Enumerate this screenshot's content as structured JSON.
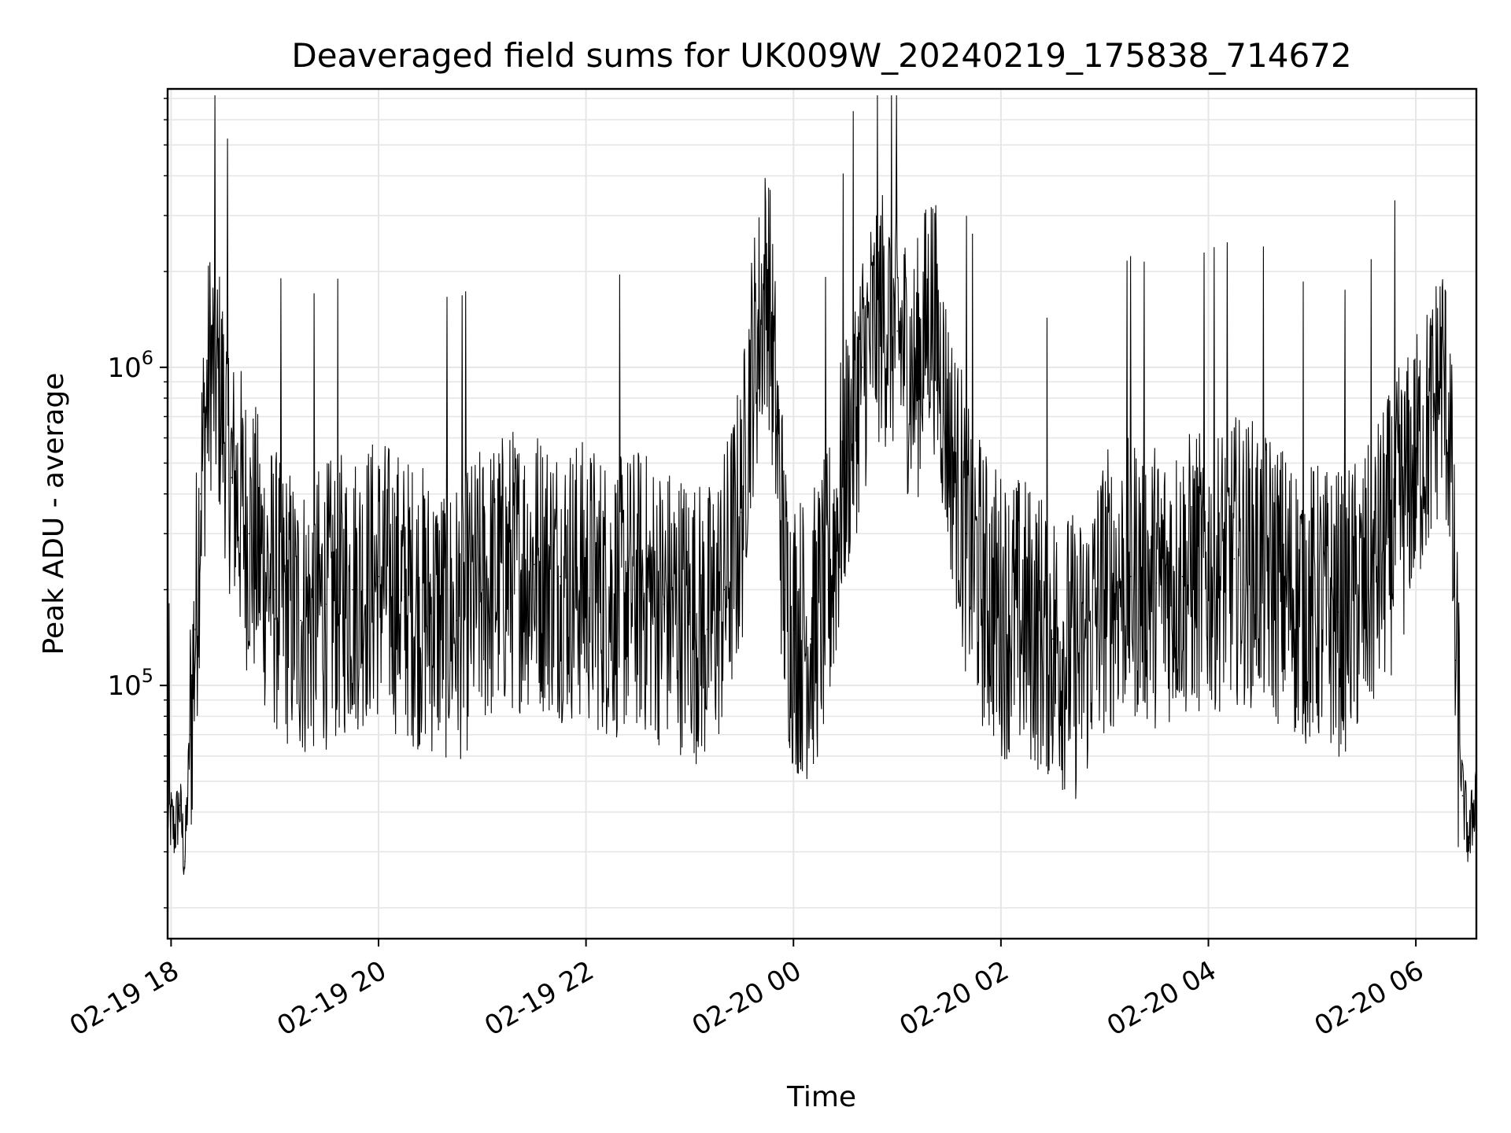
{
  "chart_data": {
    "type": "line",
    "title": "Deaveraged field sums for UK009W_20240219_175838_714672",
    "xlabel": "Time",
    "ylabel": "Peak ADU - average",
    "y_scale": "log",
    "x_range": [
      "2024-02-19 17:58",
      "2024-02-20 06:35"
    ],
    "ylim": [
      16000,
      7500000
    ],
    "x_ticks": [
      {
        "label": "02-19 18",
        "time": "2024-02-19 18:00"
      },
      {
        "label": "02-19 20",
        "time": "2024-02-19 20:00"
      },
      {
        "label": "02-19 22",
        "time": "2024-02-19 22:00"
      },
      {
        "label": "02-20 00",
        "time": "2024-02-20 00:00"
      },
      {
        "label": "02-20 02",
        "time": "2024-02-20 02:00"
      },
      {
        "label": "02-20 04",
        "time": "2024-02-20 04:00"
      },
      {
        "label": "02-20 06",
        "time": "2024-02-20 06:00"
      }
    ],
    "y_ticks": [
      {
        "base": "10",
        "exp": "5",
        "value": 100000
      },
      {
        "base": "10",
        "exp": "6",
        "value": 1000000
      }
    ],
    "grid": true,
    "line_color": "#000000",
    "grid_color": "#e6e6e6",
    "series": [
      {
        "values": [
          [
            "2024-02-19 17:58",
            40000
          ],
          [
            "2024-02-19 18:02",
            35000
          ],
          [
            "2024-02-19 18:05",
            42000
          ],
          [
            "2024-02-19 18:08",
            28000
          ],
          [
            "2024-02-19 18:11",
            70000
          ],
          [
            "2024-02-19 18:14",
            150000
          ],
          [
            "2024-02-19 18:17",
            400000
          ],
          [
            "2024-02-19 18:20",
            700000
          ],
          [
            "2024-02-19 18:23",
            1050000
          ],
          [
            "2024-02-19 18:26",
            900000
          ],
          [
            "2024-02-19 18:29",
            800000
          ],
          [
            "2024-02-19 18:35",
            450000
          ],
          [
            "2024-02-19 18:45",
            300000
          ],
          [
            "2024-02-19 19:00",
            200000
          ],
          [
            "2024-02-19 19:15",
            160000
          ],
          [
            "2024-02-19 19:30",
            180000
          ],
          [
            "2024-02-19 19:45",
            200000
          ],
          [
            "2024-02-19 20:00",
            220000
          ],
          [
            "2024-02-19 20:15",
            190000
          ],
          [
            "2024-02-19 20:30",
            170000
          ],
          [
            "2024-02-19 20:45",
            160000
          ],
          [
            "2024-02-19 21:00",
            200000
          ],
          [
            "2024-02-19 21:15",
            230000
          ],
          [
            "2024-02-19 21:30",
            240000
          ],
          [
            "2024-02-19 21:45",
            220000
          ],
          [
            "2024-02-19 22:00",
            210000
          ],
          [
            "2024-02-19 22:15",
            190000
          ],
          [
            "2024-02-19 22:30",
            200000
          ],
          [
            "2024-02-19 22:45",
            180000
          ],
          [
            "2024-02-19 23:00",
            170000
          ],
          [
            "2024-02-19 23:10",
            150000
          ],
          [
            "2024-02-19 23:20",
            200000
          ],
          [
            "2024-02-19 23:30",
            350000
          ],
          [
            "2024-02-19 23:35",
            900000
          ],
          [
            "2024-02-19 23:40",
            1300000
          ],
          [
            "2024-02-19 23:45",
            2000000
          ],
          [
            "2024-02-19 23:50",
            700000
          ],
          [
            "2024-02-19 23:55",
            200000
          ],
          [
            "2024-02-20 00:00",
            150000
          ],
          [
            "2024-02-20 00:10",
            140000
          ],
          [
            "2024-02-20 00:20",
            200000
          ],
          [
            "2024-02-20 00:30",
            500000
          ],
          [
            "2024-02-20 00:40",
            1000000
          ],
          [
            "2024-02-20 00:50",
            1500000
          ],
          [
            "2024-02-20 01:00",
            1300000
          ],
          [
            "2024-02-20 01:10",
            900000
          ],
          [
            "2024-02-20 01:20",
            1600000
          ],
          [
            "2024-02-20 01:30",
            600000
          ],
          [
            "2024-02-20 01:40",
            300000
          ],
          [
            "2024-02-20 01:50",
            200000
          ],
          [
            "2024-02-20 02:00",
            170000
          ],
          [
            "2024-02-20 02:15",
            160000
          ],
          [
            "2024-02-20 02:30",
            140000
          ],
          [
            "2024-02-20 02:45",
            120000
          ],
          [
            "2024-02-20 03:00",
            200000
          ],
          [
            "2024-02-20 03:15",
            220000
          ],
          [
            "2024-02-20 03:30",
            210000
          ],
          [
            "2024-02-20 03:45",
            220000
          ],
          [
            "2024-02-20 04:00",
            230000
          ],
          [
            "2024-02-20 04:15",
            250000
          ],
          [
            "2024-02-20 04:30",
            240000
          ],
          [
            "2024-02-20 04:45",
            200000
          ],
          [
            "2024-02-20 05:00",
            180000
          ],
          [
            "2024-02-20 05:15",
            170000
          ],
          [
            "2024-02-20 05:30",
            190000
          ],
          [
            "2024-02-20 05:45",
            300000
          ],
          [
            "2024-02-20 06:00",
            500000
          ],
          [
            "2024-02-20 06:10",
            700000
          ],
          [
            "2024-02-20 06:15",
            1000000
          ],
          [
            "2024-02-20 06:20",
            600000
          ],
          [
            "2024-02-20 06:23",
            120000
          ],
          [
            "2024-02-20 06:27",
            45000
          ],
          [
            "2024-02-20 06:31",
            32000
          ],
          [
            "2024-02-20 06:35",
            50000
          ]
        ]
      }
    ]
  }
}
